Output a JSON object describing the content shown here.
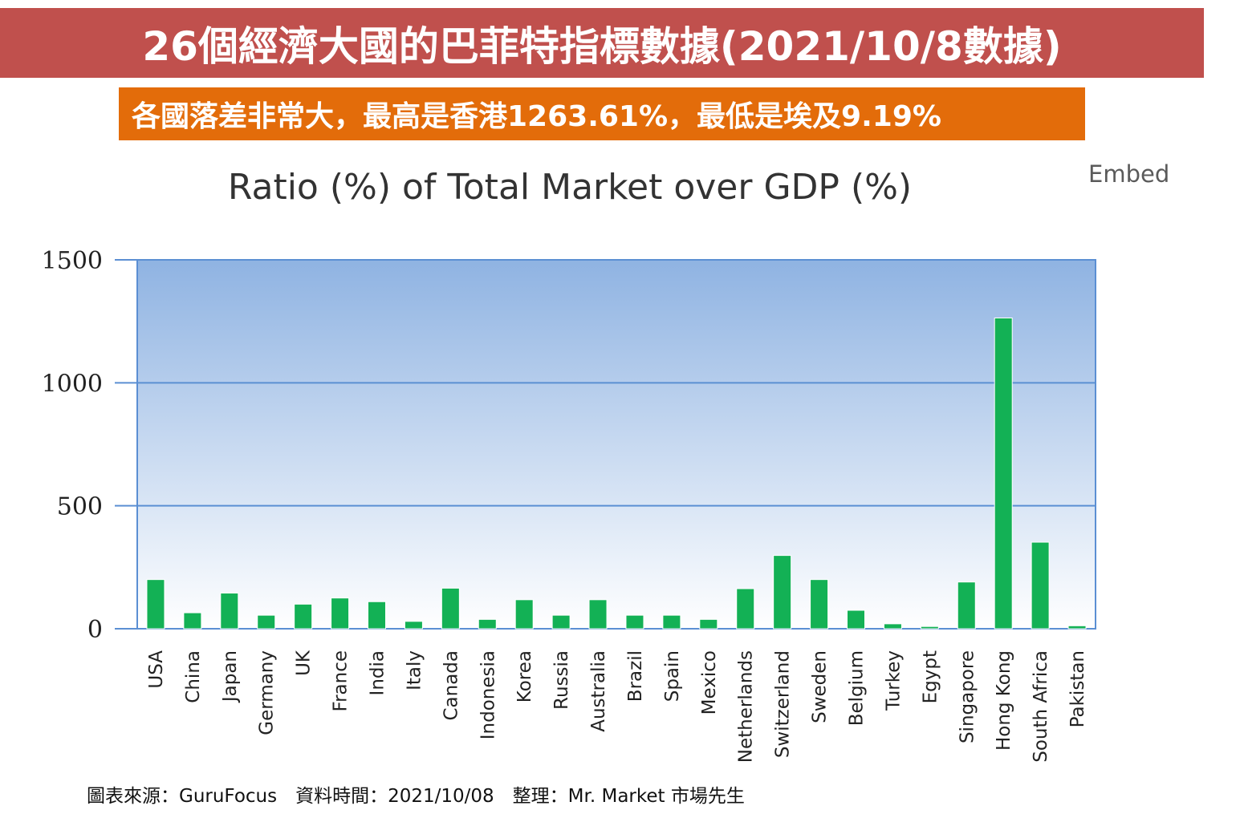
{
  "header": {
    "title": "26個經濟大國的巴菲特指標數據(2021/10/8數據)",
    "subtitle": "各國落差非常大，最高是香港1263.61%，最低是埃及9.19%"
  },
  "embed_label": "Embed",
  "footer": {
    "source": "圖表來源：GuruFocus　資料時間：2021/10/08　整理：Mr. Market 市場先生"
  },
  "colors": {
    "header_bg": "#c0504d",
    "subheader_bg": "#e36c0a",
    "bar": "#13b155",
    "plot_top": "#8fb3e2",
    "plot_bottom": "#ffffff",
    "gridline": "#5b8fd3"
  },
  "chart_data": {
    "type": "bar",
    "title": "Ratio (%) of Total Market over GDP (%)",
    "xlabel": "",
    "ylabel": "",
    "ylim": [
      0,
      1500
    ],
    "yticks": [
      0,
      500,
      1000,
      1500
    ],
    "grid": true,
    "categories": [
      "USA",
      "China",
      "Japan",
      "Germany",
      "UK",
      "France",
      "India",
      "Italy",
      "Canada",
      "Indonesia",
      "Korea",
      "Russia",
      "Australia",
      "Brazil",
      "Spain",
      "Mexico",
      "Netherlands",
      "Switzerland",
      "Sweden",
      "Belgium",
      "Turkey",
      "Egypt",
      "Singapore",
      "Hong Kong",
      "South Africa",
      "Pakistan"
    ],
    "values": [
      200,
      65,
      145,
      55,
      100,
      125,
      110,
      30,
      165,
      38,
      118,
      55,
      118,
      55,
      55,
      38,
      163,
      298,
      200,
      75,
      20,
      9.19,
      190,
      1263.61,
      352,
      12
    ]
  }
}
